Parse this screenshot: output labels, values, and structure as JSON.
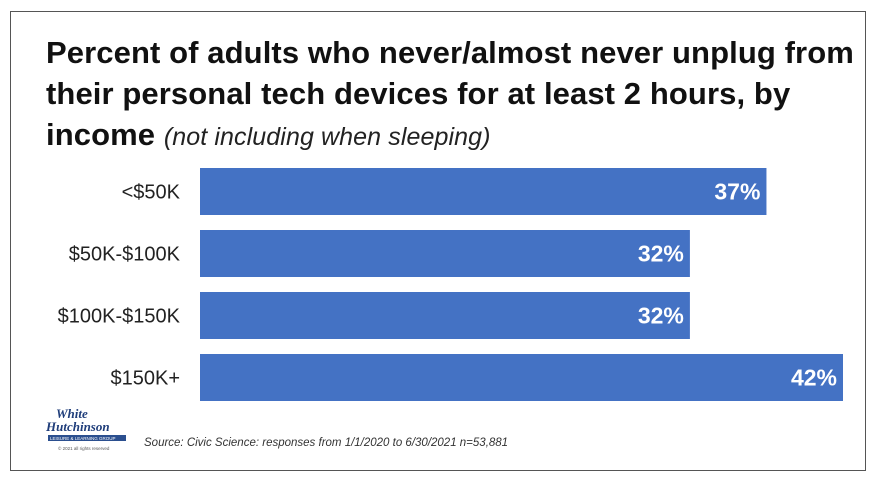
{
  "title": {
    "main": "Percent of adults who never/almost never unplug from their personal tech devices for at least 2 hours, by income",
    "note": "(not including when sleeping)"
  },
  "source": "Source: Civic Science: responses from 1/1/2020 to 6/30/2021 n=53,881",
  "logo": {
    "text_line1": "White",
    "text_line2": "Hutchinson",
    "tagline": "LEISURE & LEARNING GROUP",
    "copyright": "© 2021 all rights reserved"
  },
  "colors": {
    "bar": "#4472c4",
    "logo_blue": "#1f3d7a"
  },
  "chart_data": {
    "type": "bar",
    "orientation": "horizontal",
    "title": "Percent of adults who never/almost never unplug from their personal tech devices for at least 2 hours, by income (not including when sleeping)",
    "categories": [
      "<$50K",
      "$50K-$100K",
      "$100K-$150K",
      "$150K+"
    ],
    "values": [
      37,
      32,
      32,
      42
    ],
    "value_labels": [
      "37%",
      "32%",
      "32%",
      "42%"
    ],
    "unit": "%",
    "xlabel": "",
    "ylabel": "",
    "grid": false,
    "legend": "none"
  }
}
